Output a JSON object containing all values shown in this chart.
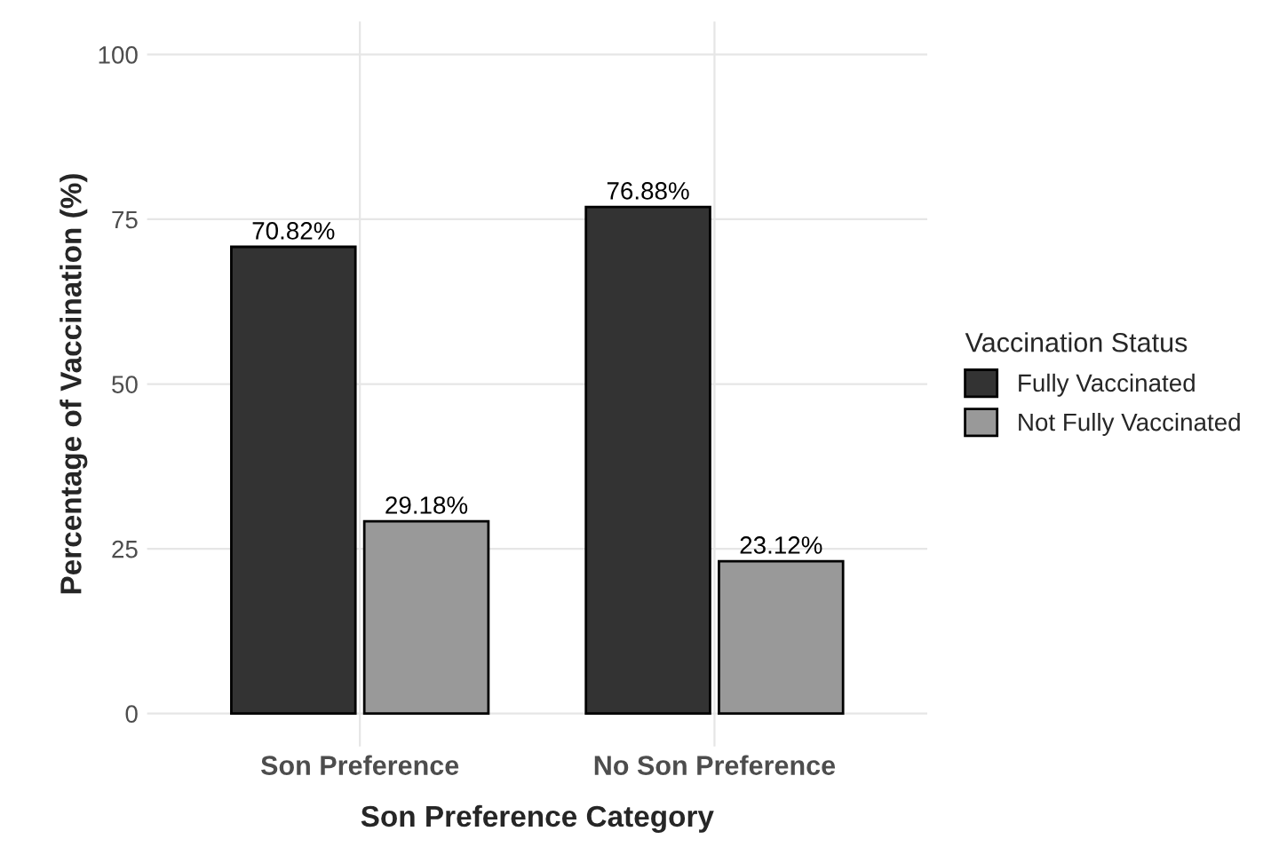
{
  "chart_data": {
    "type": "bar",
    "xlabel": "Son Preference Category",
    "ylabel": "Percentage of Vaccination (%)",
    "legend_title": "Vaccination Status",
    "categories": [
      "Son Preference",
      "No Son Preference"
    ],
    "series": [
      {
        "name": "Fully Vaccinated",
        "color": "#333333",
        "values": [
          70.82,
          76.88
        ],
        "value_labels": [
          "70.82%",
          "76.88%"
        ]
      },
      {
        "name": "Not Fully Vaccinated",
        "color": "#999999",
        "values": [
          29.18,
          23.12
        ],
        "value_labels": [
          "29.18%",
          "23.12%"
        ]
      }
    ],
    "ylim": [
      -5,
      105
    ],
    "yticks": [
      0,
      25,
      50,
      75,
      100
    ],
    "grid": true,
    "legend": "right"
  }
}
